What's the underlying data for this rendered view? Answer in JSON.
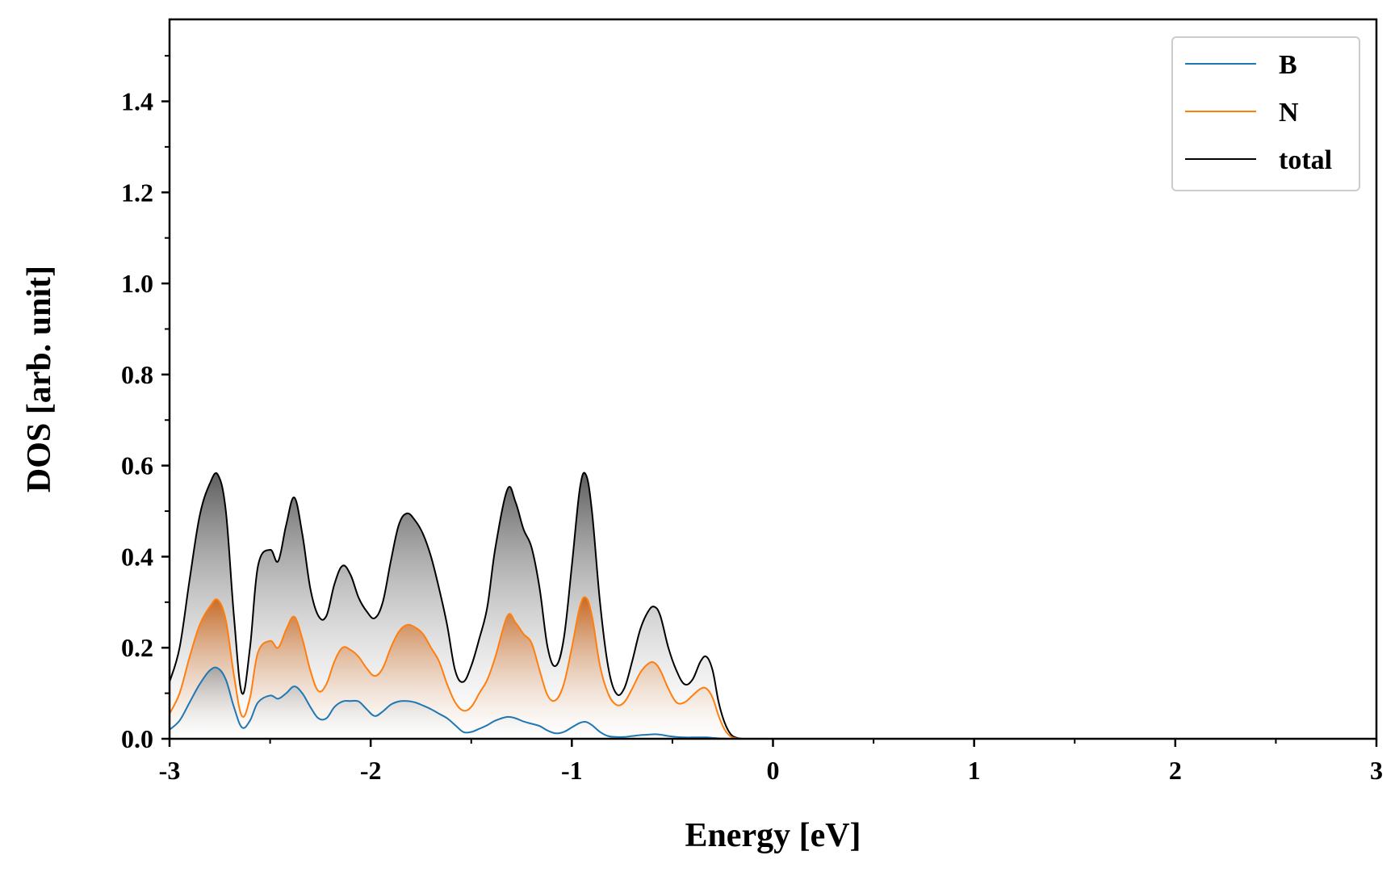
{
  "chart_data": {
    "type": "area",
    "xlabel": "Energy [eV]",
    "ylabel": "DOS [arb. unit]",
    "xlim": [
      -3,
      3
    ],
    "ylim": [
      0,
      1.58
    ],
    "x_ticks": [
      -3,
      -2,
      -1,
      0,
      1,
      2,
      3
    ],
    "x_tick_labels": [
      "-3",
      "-2",
      "-1",
      "0",
      "1",
      "2",
      "3"
    ],
    "y_ticks": [
      0,
      0.2,
      0.4,
      0.6,
      0.8,
      1.0,
      1.2,
      1.4
    ],
    "y_tick_labels": [
      "0.0",
      "0.2",
      "0.4",
      "0.6",
      "0.8",
      "1.0",
      "1.2",
      "1.4"
    ],
    "grid": false,
    "legend_position": "top-right",
    "x": [
      -3.0,
      -2.95,
      -2.9,
      -2.85,
      -2.8,
      -2.76,
      -2.72,
      -2.68,
      -2.64,
      -2.6,
      -2.56,
      -2.5,
      -2.46,
      -2.42,
      -2.38,
      -2.34,
      -2.3,
      -2.26,
      -2.22,
      -2.18,
      -2.14,
      -2.1,
      -2.06,
      -2.02,
      -1.98,
      -1.94,
      -1.9,
      -1.86,
      -1.82,
      -1.78,
      -1.74,
      -1.7,
      -1.66,
      -1.62,
      -1.58,
      -1.54,
      -1.5,
      -1.46,
      -1.42,
      -1.38,
      -1.32,
      -1.28,
      -1.24,
      -1.2,
      -1.16,
      -1.12,
      -1.08,
      -1.04,
      -1.0,
      -0.96,
      -0.93,
      -0.9,
      -0.86,
      -0.82,
      -0.78,
      -0.74,
      -0.7,
      -0.66,
      -0.62,
      -0.59,
      -0.56,
      -0.52,
      -0.48,
      -0.44,
      -0.4,
      -0.36,
      -0.33,
      -0.3,
      -0.27,
      -0.24,
      -0.21,
      -0.18,
      -0.15,
      -0.1,
      0.0,
      1.0,
      2.0,
      3.0
    ],
    "series": [
      {
        "name": "B",
        "color": "#1f77b4",
        "values": [
          0.02,
          0.04,
          0.08,
          0.12,
          0.15,
          0.155,
          0.13,
          0.07,
          0.025,
          0.04,
          0.08,
          0.095,
          0.088,
          0.1,
          0.115,
          0.1,
          0.07,
          0.045,
          0.045,
          0.07,
          0.082,
          0.083,
          0.082,
          0.065,
          0.05,
          0.06,
          0.075,
          0.082,
          0.083,
          0.08,
          0.073,
          0.065,
          0.055,
          0.045,
          0.03,
          0.015,
          0.015,
          0.022,
          0.03,
          0.04,
          0.048,
          0.045,
          0.038,
          0.033,
          0.028,
          0.018,
          0.012,
          0.015,
          0.025,
          0.035,
          0.037,
          0.03,
          0.015,
          0.006,
          0.004,
          0.004,
          0.006,
          0.008,
          0.009,
          0.01,
          0.009,
          0.006,
          0.004,
          0.003,
          0.003,
          0.003,
          0.003,
          0.002,
          0.001,
          0.0005,
          0.0,
          0.0,
          0.0,
          0.0,
          0.0,
          0.0,
          0.0,
          0.0
        ]
      },
      {
        "name": "N",
        "color": "#ff7f0e",
        "values": [
          0.055,
          0.1,
          0.18,
          0.25,
          0.29,
          0.305,
          0.26,
          0.14,
          0.05,
          0.09,
          0.19,
          0.215,
          0.2,
          0.24,
          0.268,
          0.22,
          0.15,
          0.105,
          0.12,
          0.17,
          0.2,
          0.195,
          0.18,
          0.155,
          0.138,
          0.155,
          0.2,
          0.235,
          0.25,
          0.245,
          0.23,
          0.2,
          0.17,
          0.12,
          0.08,
          0.062,
          0.07,
          0.1,
          0.13,
          0.18,
          0.27,
          0.255,
          0.23,
          0.21,
          0.15,
          0.095,
          0.085,
          0.12,
          0.2,
          0.29,
          0.31,
          0.27,
          0.16,
          0.1,
          0.075,
          0.08,
          0.11,
          0.145,
          0.165,
          0.167,
          0.15,
          0.11,
          0.08,
          0.08,
          0.095,
          0.11,
          0.11,
          0.09,
          0.05,
          0.02,
          0.005,
          0.001,
          0.0,
          0.0,
          0.0,
          0.0,
          0.0,
          0.0
        ]
      },
      {
        "name": "total",
        "color": "#000000",
        "values": [
          0.125,
          0.2,
          0.35,
          0.49,
          0.56,
          0.58,
          0.5,
          0.27,
          0.1,
          0.2,
          0.38,
          0.415,
          0.39,
          0.47,
          0.53,
          0.45,
          0.33,
          0.27,
          0.27,
          0.34,
          0.38,
          0.36,
          0.31,
          0.28,
          0.265,
          0.3,
          0.39,
          0.47,
          0.495,
          0.48,
          0.45,
          0.4,
          0.33,
          0.25,
          0.15,
          0.125,
          0.16,
          0.22,
          0.29,
          0.42,
          0.548,
          0.52,
          0.46,
          0.42,
          0.33,
          0.2,
          0.16,
          0.22,
          0.38,
          0.55,
          0.58,
          0.5,
          0.3,
          0.16,
          0.1,
          0.11,
          0.17,
          0.24,
          0.28,
          0.29,
          0.27,
          0.2,
          0.15,
          0.12,
          0.13,
          0.17,
          0.18,
          0.15,
          0.08,
          0.035,
          0.01,
          0.002,
          0.0,
          0.0,
          0.0,
          0.0,
          0.0,
          0.0
        ]
      }
    ]
  }
}
